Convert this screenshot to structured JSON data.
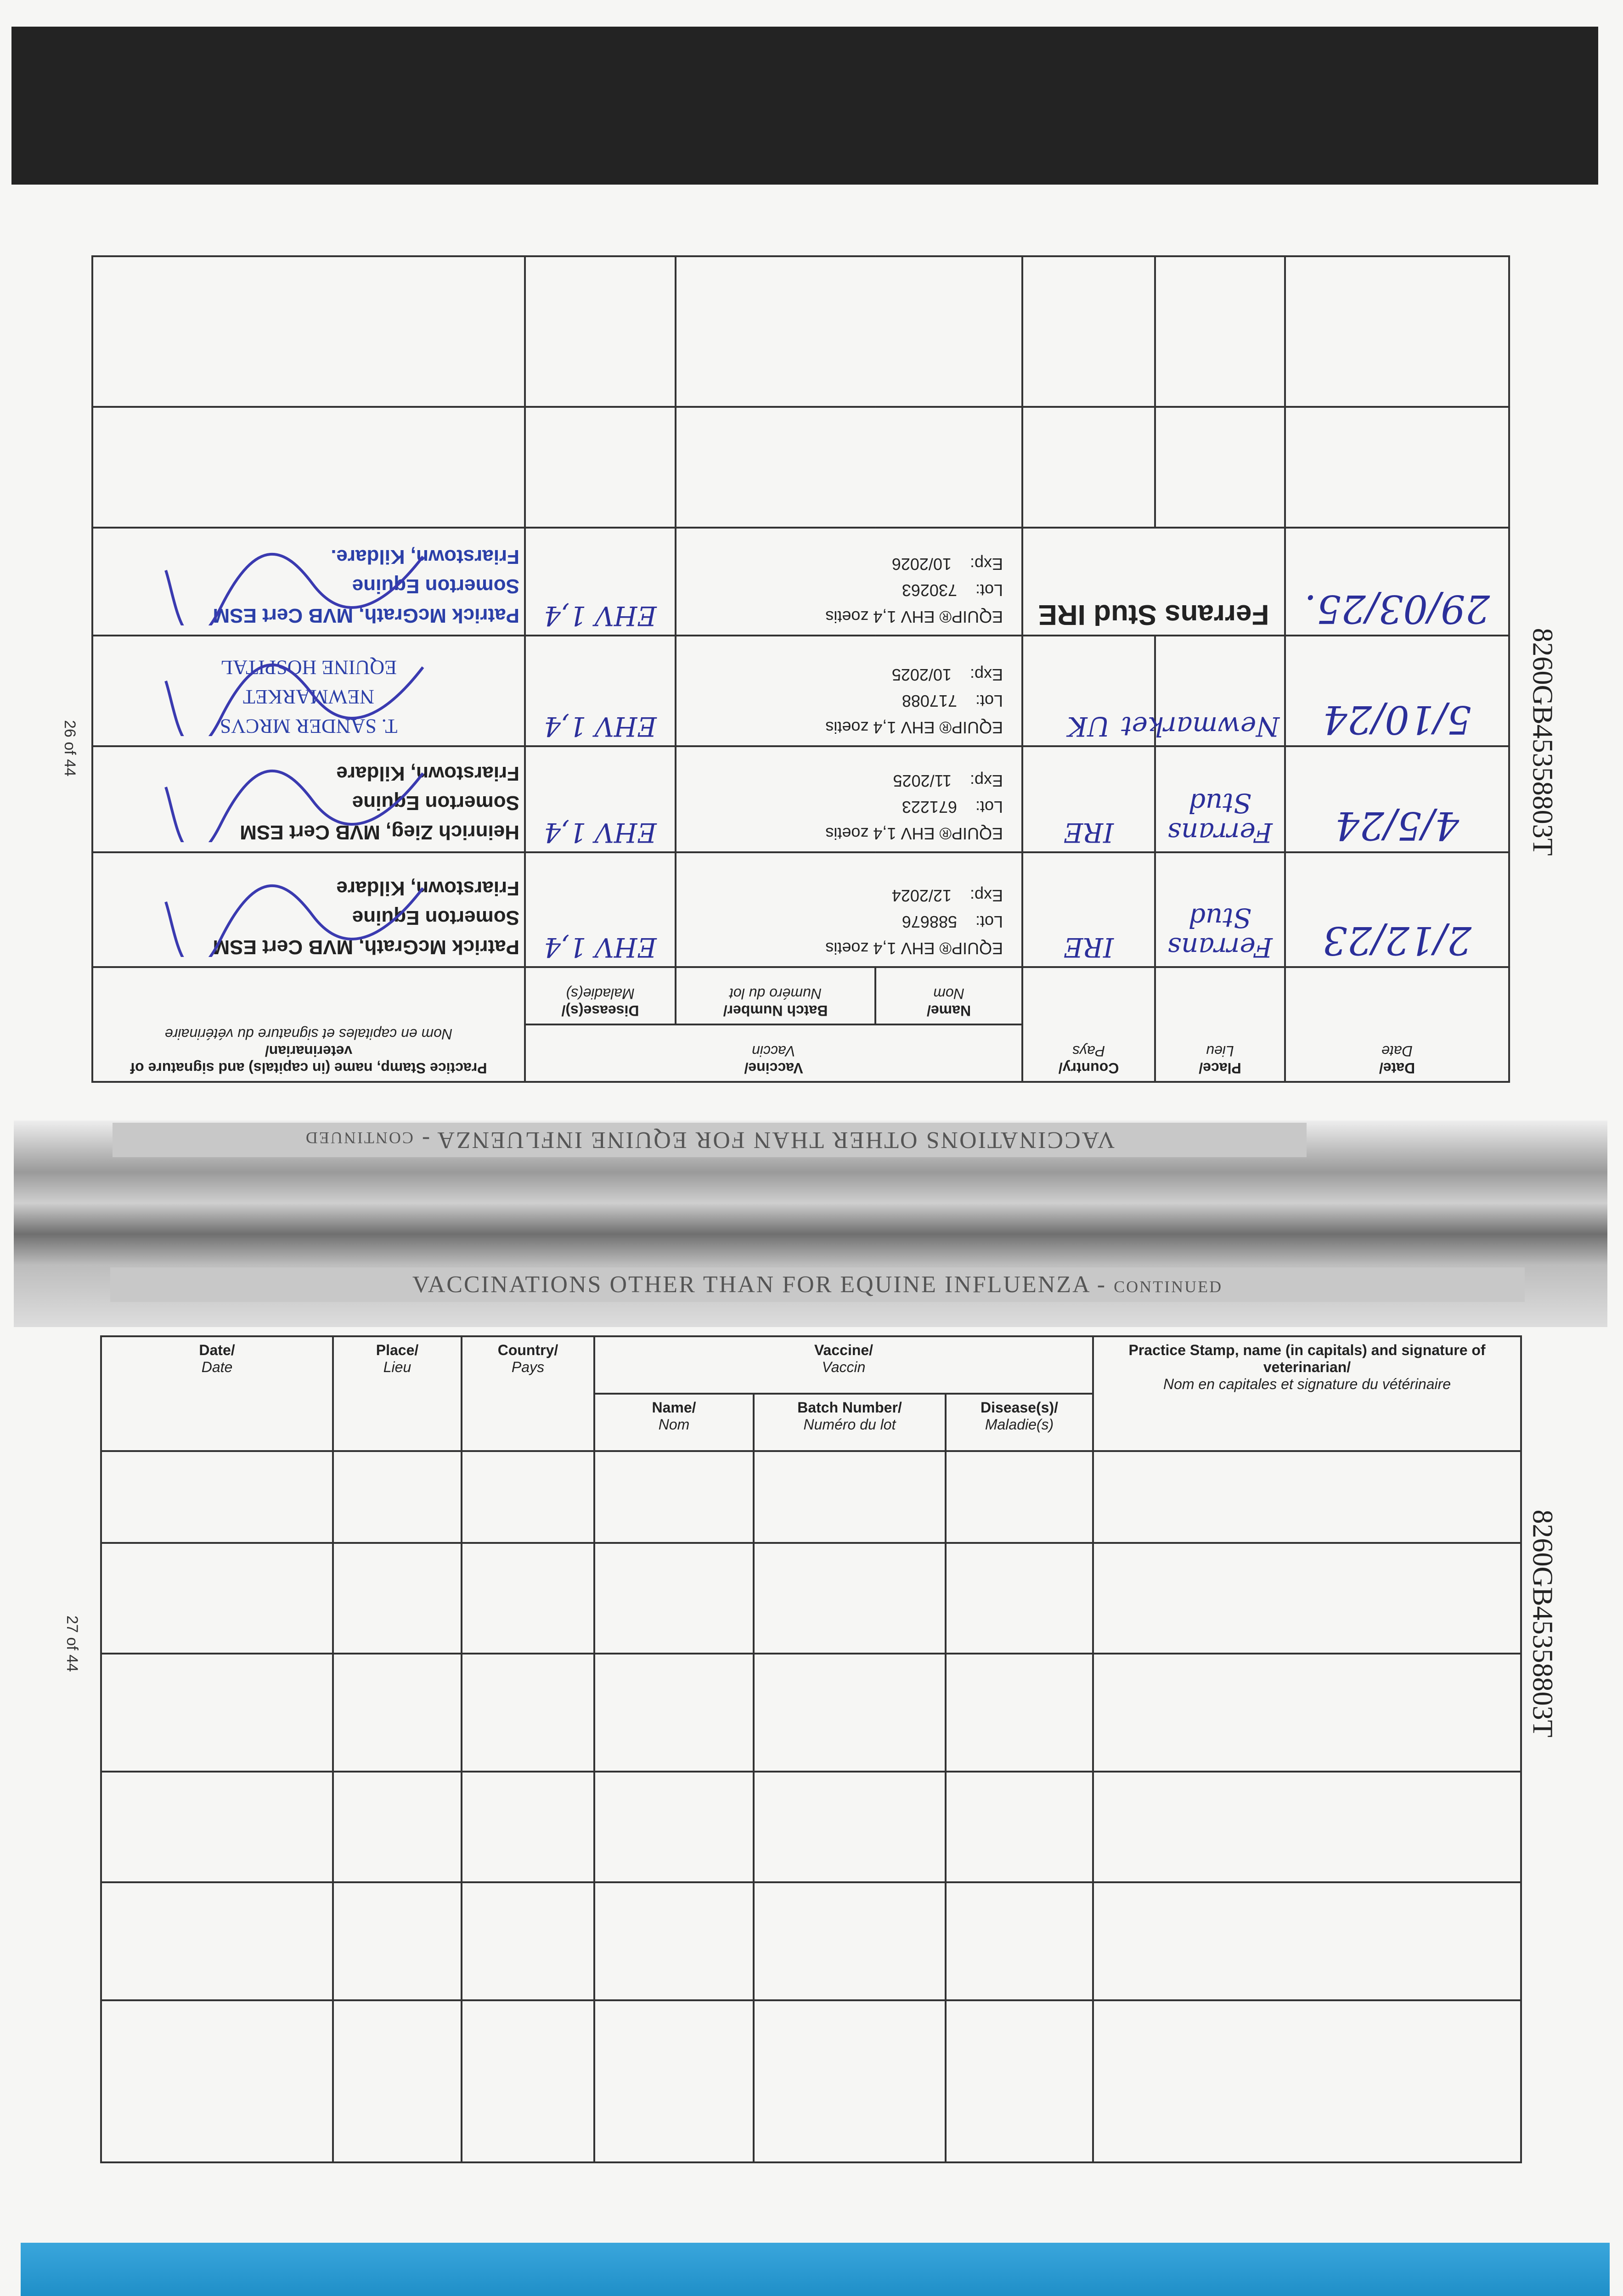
{
  "page_top": {
    "section_title": "VACCINATIONS OTHER THAN FOR EQUINE INFLUENZA",
    "section_suffix": "CONTINUED",
    "page_number": "26 of 44",
    "serial": "8260GB45358803T"
  },
  "page_bottom": {
    "section_title": "VACCINATIONS OTHER THAN FOR EQUINE INFLUENZA",
    "section_suffix": "CONTINUED",
    "page_number": "27 of 44",
    "serial": "8260GB45358803T"
  },
  "headers": {
    "date": "Date/",
    "date_fr": "Date",
    "place": "Place/",
    "place_fr": "Lieu",
    "country": "Country/",
    "country_fr": "Pays",
    "vaccine": "Vaccine/",
    "vaccine_fr": "Vaccin",
    "name": "Name/",
    "name_fr": "Nom",
    "batch": "Batch Number/",
    "batch_fr": "Numéro du lot",
    "disease": "Disease(s)/",
    "disease_fr": "Maladie(s)",
    "stamp": "Practice Stamp, name (in capitals) and signature of veterinarian/",
    "stamp_fr": "Nom en capitales et signature du vétérinaire"
  },
  "records": [
    {
      "date": "2/12/23",
      "place": "Ferrans Stud",
      "country": "IRE",
      "vaccine": "EQUIP® EHV 1,4 zoetis",
      "lot_label": "Lot:",
      "lot": "588676",
      "exp_label": "Exp:",
      "exp": "12/2024",
      "disease": "EHV 1,4",
      "stamp": [
        "Patrick McGrath, MVB Cert ESM",
        "Somerton Equine",
        "Friarstown, Kildare"
      ],
      "stamp_style": "black"
    },
    {
      "date": "4/5/24",
      "place": "Ferrans Stud",
      "country": "IRE",
      "vaccine": "EQUIP® EHV 1,4 zoetis",
      "lot_label": "Lot:",
      "lot": "671223",
      "exp_label": "Exp:",
      "exp": "11/2025",
      "disease": "EHV 1,4",
      "stamp": [
        "Heinrich Zieg, MVB Cert ESM",
        "Somerton Equine",
        "Friarstown, Kildare"
      ],
      "stamp_style": "black"
    },
    {
      "date": "5/10/24",
      "place": "Newmarket",
      "country": "UK",
      "vaccine": "EQUIP® EHV 1,4 zoetis",
      "lot_label": "Lot:",
      "lot": "717088",
      "exp_label": "Exp:",
      "exp": "10/2025",
      "disease": "EHV 1,4",
      "stamp": [
        "T. SANDER MRCVS",
        "NEWMARKET",
        "EQUINE HOSPITAL"
      ],
      "stamp_style": "blue-serif"
    },
    {
      "date": "29/03/25.",
      "place": "Ferrans Stud IRE",
      "country": "",
      "vaccine": "EQUIP® EHV 1,4 zoetis",
      "lot_label": "Lot:",
      "lot": "730263",
      "exp_label": "Exp:",
      "exp": "10/2026",
      "disease": "EHV 1,4",
      "stamp": [
        "Patrick McGrath, MVB Cert ESM",
        "Somerton Equine",
        "Friarstown, Kildare."
      ],
      "stamp_style": "blue"
    }
  ],
  "colors": {
    "ink": "#2b2f9a",
    "stamp_blue": "#2b3fa8",
    "bottom_bar": "#2a9fd6"
  }
}
